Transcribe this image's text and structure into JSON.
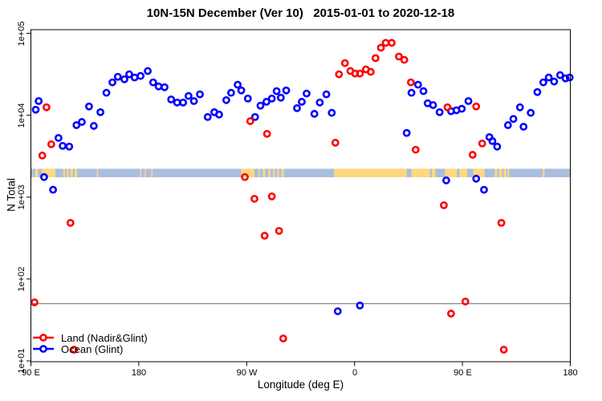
{
  "title": "10N-15N December (Ver 10)   2015-01-01 to 2020-12-18",
  "axes": {
    "x": {
      "label": "Longitude (deg E)",
      "domain_deg_east": [
        90,
        540
      ],
      "ticks": [
        {
          "lon": 90,
          "label": "90 E"
        },
        {
          "lon": 180,
          "label": "180"
        },
        {
          "lon": 270,
          "label": "90 W"
        },
        {
          "lon": 360,
          "label": "0"
        },
        {
          "lon": 450,
          "label": "90 E"
        },
        {
          "lon": 540,
          "label": "180"
        }
      ]
    },
    "y": {
      "label": "N Total",
      "scale": "log",
      "range": [
        10,
        100000
      ],
      "ticks": [
        {
          "value": 10,
          "label": "1e+01"
        },
        {
          "value": 100,
          "label": "1e+02"
        },
        {
          "value": 1000,
          "label": "1e+03"
        },
        {
          "value": 10000,
          "label": "1e+04"
        },
        {
          "value": 100000,
          "label": "1e+05"
        }
      ]
    }
  },
  "reference_line": {
    "value": 50,
    "color": "#888888"
  },
  "map_strip": {
    "ocean_color": "#A9BEDE",
    "land_color": "#FFD87E",
    "y_value_range": [
      1750,
      2220
    ],
    "land_segments_lon": [
      [
        93.5,
        96
      ],
      [
        99,
        110.5
      ],
      [
        117,
        118.5
      ],
      [
        120,
        121.5
      ],
      [
        123,
        125
      ],
      [
        126.5,
        128.5
      ],
      [
        145,
        146
      ],
      [
        181,
        182
      ],
      [
        185,
        186
      ],
      [
        190.5,
        191.5
      ],
      [
        265.5,
        276.5
      ],
      [
        280,
        281
      ],
      [
        283.5,
        285.5
      ],
      [
        288,
        290
      ],
      [
        292,
        293.5
      ],
      [
        295.5,
        297
      ],
      [
        299,
        301
      ],
      [
        343,
        403.5
      ],
      [
        407.5,
        423
      ],
      [
        424.5,
        427.5
      ],
      [
        435.5,
        445.5
      ],
      [
        447.5,
        454
      ],
      [
        459,
        468.5
      ],
      [
        477,
        479
      ],
      [
        480.5,
        483
      ],
      [
        484.5,
        486.5
      ],
      [
        487.5,
        489
      ],
      [
        517,
        518.5
      ]
    ]
  },
  "legend": {
    "items": [
      {
        "label": "Land (Nadir&Glint)",
        "color": "#FF0000"
      },
      {
        "label": "Ocean (Glint)",
        "color": "#0000FF"
      }
    ]
  },
  "chart_data": {
    "type": "scatter",
    "title": "10N-15N December (Ver 10)   2015-01-01 to 2020-12-18",
    "xlabel": "Longitude (deg E)",
    "ylabel": "N Total",
    "xlim": [
      90,
      540
    ],
    "ylim": [
      10,
      100000
    ],
    "yscale": "log",
    "series": [
      {
        "name": "Land (Nadir&Glint)",
        "color": "#FF0000",
        "points": [
          [
            93,
            51.9
          ],
          [
            99.5,
            3220
          ],
          [
            103,
            12500
          ],
          [
            107,
            4420
          ],
          [
            123,
            485
          ],
          [
            126,
            13.7
          ],
          [
            268.5,
            1760
          ],
          [
            273,
            8470
          ],
          [
            276.5,
            955
          ],
          [
            285,
            338
          ],
          [
            287,
            5930
          ],
          [
            291,
            1020
          ],
          [
            297,
            387
          ],
          [
            300.5,
            18.8
          ],
          [
            344,
            4620
          ],
          [
            347,
            31600
          ],
          [
            352,
            43300
          ],
          [
            356.5,
            34700
          ],
          [
            360.5,
            32300
          ],
          [
            364.5,
            32300
          ],
          [
            369.5,
            36300
          ],
          [
            373.5,
            33900
          ],
          [
            377.5,
            49800
          ],
          [
            382,
            66800
          ],
          [
            386,
            76600
          ],
          [
            391,
            76600
          ],
          [
            397,
            52100
          ],
          [
            401.5,
            47500
          ],
          [
            407,
            25200
          ],
          [
            411,
            3790
          ],
          [
            434.5,
            796
          ],
          [
            437.5,
            12500
          ],
          [
            440.5,
            37.8
          ],
          [
            452.5,
            53.1
          ],
          [
            458.5,
            3290
          ],
          [
            461.5,
            12800
          ],
          [
            466.5,
            4520
          ],
          [
            482.5,
            485
          ],
          [
            484.5,
            13.7
          ]
        ]
      },
      {
        "name": "Ocean (Glint)",
        "color": "#0000FF",
        "points": [
          [
            94,
            11700
          ],
          [
            96.5,
            14900
          ],
          [
            101,
            1760
          ],
          [
            108.5,
            1230
          ],
          [
            113,
            5280
          ],
          [
            116.5,
            4230
          ],
          [
            122,
            4140
          ],
          [
            128,
            7570
          ],
          [
            132.5,
            8280
          ],
          [
            138.5,
            12800
          ],
          [
            142.5,
            7400
          ],
          [
            148,
            10900
          ],
          [
            153,
            18800
          ],
          [
            158,
            25200
          ],
          [
            162.5,
            29500
          ],
          [
            168,
            27500
          ],
          [
            172,
            31600
          ],
          [
            176.5,
            28900
          ],
          [
            181.5,
            30200
          ],
          [
            187.5,
            34700
          ],
          [
            192,
            25200
          ],
          [
            196.5,
            22500
          ],
          [
            201.5,
            22000
          ],
          [
            207,
            15600
          ],
          [
            212,
            14300
          ],
          [
            217,
            14300
          ],
          [
            221.5,
            17200
          ],
          [
            226,
            14900
          ],
          [
            231,
            18000
          ],
          [
            237.5,
            9520
          ],
          [
            243,
            10900
          ],
          [
            247,
            10200
          ],
          [
            253,
            15300
          ],
          [
            257,
            18800
          ],
          [
            262.5,
            23600
          ],
          [
            265.5,
            20100
          ],
          [
            271,
            16000
          ],
          [
            277,
            9520
          ],
          [
            281.5,
            13100
          ],
          [
            286.5,
            14600
          ],
          [
            291,
            16000
          ],
          [
            295,
            19700
          ],
          [
            298.5,
            16400
          ],
          [
            303,
            20100
          ],
          [
            312,
            12200
          ],
          [
            316,
            14600
          ],
          [
            320,
            18400
          ],
          [
            326.5,
            10400
          ],
          [
            331,
            14300
          ],
          [
            336.5,
            18000
          ],
          [
            341,
            10700
          ],
          [
            346,
            40.4
          ],
          [
            364.5,
            47.5
          ],
          [
            403.5,
            6080
          ],
          [
            407.5,
            18800
          ],
          [
            413,
            23600
          ],
          [
            417.5,
            19700
          ],
          [
            421,
            14000
          ],
          [
            425.5,
            13300
          ],
          [
            431,
            10900
          ],
          [
            436.5,
            1600
          ],
          [
            440.5,
            11200
          ],
          [
            445,
            11500
          ],
          [
            449.5,
            12000
          ],
          [
            455,
            14900
          ],
          [
            461.5,
            1680
          ],
          [
            468,
            1230
          ],
          [
            472.5,
            5400
          ],
          [
            475,
            4840
          ],
          [
            479,
            4140
          ],
          [
            488,
            7570
          ],
          [
            492.5,
            9010
          ],
          [
            498,
            12500
          ],
          [
            501,
            7240
          ],
          [
            507,
            10700
          ],
          [
            512.5,
            19200
          ],
          [
            517.5,
            25200
          ],
          [
            522,
            28900
          ],
          [
            526.5,
            25800
          ],
          [
            531.5,
            30900
          ],
          [
            536,
            28200
          ],
          [
            539.5,
            28900
          ]
        ]
      }
    ]
  }
}
